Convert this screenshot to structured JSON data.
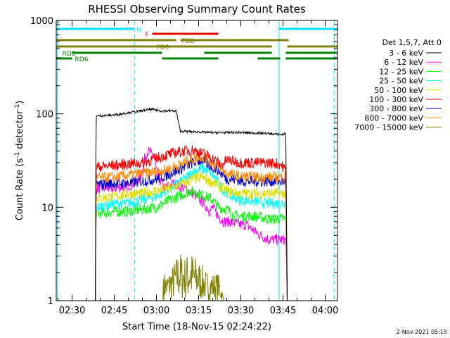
{
  "chart_data": {
    "type": "line",
    "title": "RHESSI Observing Summary Count Rates",
    "xlabel": "Start Time (18-Nov-15 02:24:22)",
    "ylabel_parts": [
      "Count Rate (s",
      "-1",
      " detector",
      "-1",
      ")"
    ],
    "yscale": "log",
    "ylim": [
      1,
      1000
    ],
    "xlim_minutes": [
      24.37,
      124.37
    ],
    "x_ticks": [
      {
        "m": 30,
        "label": "02:30"
      },
      {
        "m": 45,
        "label": "02:45"
      },
      {
        "m": 60,
        "label": "03:00"
      },
      {
        "m": 75,
        "label": "03:15"
      },
      {
        "m": 90,
        "label": "03:30"
      },
      {
        "m": 105,
        "label": "03:45"
      },
      {
        "m": 120,
        "label": "04:00"
      }
    ],
    "y_ticks": [
      {
        "v": 1,
        "label": "1"
      },
      {
        "v": 10,
        "label": "10"
      },
      {
        "v": 100,
        "label": "100"
      },
      {
        "v": 1000,
        "label": "1000"
      }
    ],
    "legend_title": "Det 1,5,7, Att 0",
    "legend_position": "right",
    "series": [
      {
        "name": "3 - 6 keV",
        "color": "#000000",
        "x": [
          38.3,
          38.5,
          45,
          50,
          55,
          58,
          62,
          65,
          67,
          68.5,
          70,
          80,
          90,
          98,
          104,
          105,
          106,
          106.5
        ],
        "y": [
          1,
          95,
          97,
          103,
          108,
          112,
          107,
          108,
          107,
          65,
          65,
          63,
          63,
          62,
          60,
          60,
          62,
          1
        ]
      },
      {
        "name": "6 - 12 keV",
        "color": "#ff00ff",
        "x": [
          38.3,
          38.5,
          45,
          50,
          54,
          56,
          57,
          59,
          60,
          61,
          63,
          66,
          70,
          73,
          77,
          79,
          80,
          82,
          84,
          86,
          90,
          92,
          95,
          97,
          100,
          103,
          106,
          106.5
        ],
        "y": [
          1,
          16,
          16,
          17,
          20,
          35,
          40,
          36,
          24,
          20,
          16,
          18,
          16,
          14,
          11,
          9,
          10,
          8,
          7,
          7,
          6.5,
          6.5,
          5.5,
          5,
          4.5,
          4.5,
          4.5,
          1
        ]
      },
      {
        "name": "12 - 25 keV",
        "color": "#00ff00",
        "x": [
          38.3,
          38.5,
          45,
          50,
          55,
          60,
          65,
          70,
          72,
          75,
          78,
          80,
          82,
          85,
          88,
          90,
          95,
          100,
          104,
          106,
          106.5
        ],
        "y": [
          1,
          8.5,
          9,
          9,
          9.5,
          10,
          12,
          14,
          15,
          14,
          13,
          12,
          10,
          9.5,
          8,
          8,
          8,
          7.5,
          7.5,
          7.5,
          1
        ]
      },
      {
        "name": "25 - 50 keV",
        "color": "#00ffff",
        "x": [
          38.3,
          38.5,
          45,
          50,
          55,
          60,
          65,
          70,
          73,
          76,
          79,
          81,
          84,
          87,
          90,
          95,
          100,
          104,
          106,
          106.5
        ],
        "y": [
          1,
          10,
          11,
          11,
          12,
          13,
          16,
          20,
          24,
          26,
          24,
          20,
          15,
          13,
          12,
          11.5,
          11,
          11,
          11,
          1
        ]
      },
      {
        "name": "50 - 100 keV",
        "color": "#dddd00",
        "x": [
          38.3,
          38.5,
          45,
          50,
          55,
          60,
          65,
          70,
          73,
          76,
          79,
          82,
          85,
          88,
          90,
          95,
          100,
          104,
          106,
          106.5
        ],
        "y": [
          1,
          12.5,
          13,
          14,
          14,
          15,
          16,
          18,
          20,
          21,
          19,
          17,
          15,
          14.5,
          14,
          14,
          14,
          14,
          14,
          1
        ]
      },
      {
        "name": "100 - 300 keV",
        "color": "#ff0000",
        "x": [
          38.3,
          38.5,
          45,
          50,
          55,
          58,
          62,
          66,
          70,
          73,
          76,
          79,
          82,
          83,
          85,
          88,
          90,
          95,
          100,
          104,
          106,
          106.5
        ],
        "y": [
          1,
          27,
          28,
          29,
          30,
          32,
          35,
          38,
          40,
          41,
          38,
          35,
          30,
          28,
          32,
          31,
          30,
          30,
          30,
          29,
          25,
          1
        ]
      },
      {
        "name": "300 - 800 keV",
        "color": "#0000cc",
        "x": [
          38.3,
          38.5,
          45,
          50,
          55,
          60,
          65,
          70,
          73,
          76,
          79,
          82,
          85,
          88,
          90,
          95,
          100,
          104,
          106,
          106.5
        ],
        "y": [
          1,
          17.5,
          18,
          18,
          19,
          20,
          23,
          27,
          30,
          32,
          28,
          25,
          20,
          20,
          19,
          19,
          19,
          19,
          19,
          1
        ]
      },
      {
        "name": "800 - 7000 keV",
        "color": "#ff8800",
        "x": [
          38.3,
          38.5,
          45,
          50,
          55,
          60,
          65,
          70,
          73,
          76,
          79,
          82,
          85,
          88,
          90,
          95,
          100,
          104,
          106,
          106.5
        ],
        "y": [
          1,
          20.5,
          21,
          22,
          23,
          24,
          26,
          30,
          33,
          35,
          31,
          27,
          23,
          22,
          21.5,
          21,
          21,
          21,
          21,
          1
        ]
      },
      {
        "name": "7000 - 15000 keV",
        "color": "#808000",
        "x": [
          62.3,
          62.5,
          64,
          66,
          68,
          70,
          72,
          74,
          76,
          78,
          80,
          82,
          83,
          84
        ],
        "y": [
          1,
          2,
          2,
          2.5,
          3.5,
          3,
          3.5,
          3,
          2.5,
          2,
          2,
          2,
          1.5,
          1
        ]
      }
    ],
    "state_bars": {
      "N": {
        "color": "#00e0ff",
        "label": "N",
        "segments": [
          [
            24.37,
            52
          ],
          [
            103.5,
            124.37
          ]
        ]
      },
      "F": {
        "color": "#e00000",
        "label": "F",
        "segments": [
          [
            58.5,
            82
          ]
        ]
      },
      "FD2": {
        "color": "#808000",
        "label": "FD2",
        "segments": [
          [
            24.37,
            67
          ],
          [
            68.5,
            107
          ]
        ]
      },
      "FD3": {
        "color": "#808000",
        "label": "FD3",
        "segments": [
          [
            24.37,
            101
          ],
          [
            106.5,
            124.37
          ]
        ]
      },
      "RD0": {
        "color": "#008000",
        "label": "RD0",
        "segments": [
          [
            30,
            62
          ],
          [
            77,
            101
          ],
          [
            106,
            124.37
          ]
        ]
      },
      "RD6": {
        "color": "#008000",
        "label": "RD6",
        "segments": [
          [
            24.37,
            30
          ],
          [
            62,
            82
          ],
          [
            96,
            104
          ],
          [
            106,
            124.37
          ]
        ]
      }
    },
    "vlines": [
      {
        "m": 24.8,
        "color": "#00e0ff",
        "style": "solid"
      },
      {
        "m": 103.6,
        "color": "#00e0ff",
        "style": "solid"
      },
      {
        "m": 52.3,
        "color": "#00e0ff",
        "style": "dashed"
      },
      {
        "m": 123.2,
        "color": "#00e0ff",
        "style": "dashed"
      }
    ],
    "footer_date": "2-Nov-2021 05:15"
  }
}
